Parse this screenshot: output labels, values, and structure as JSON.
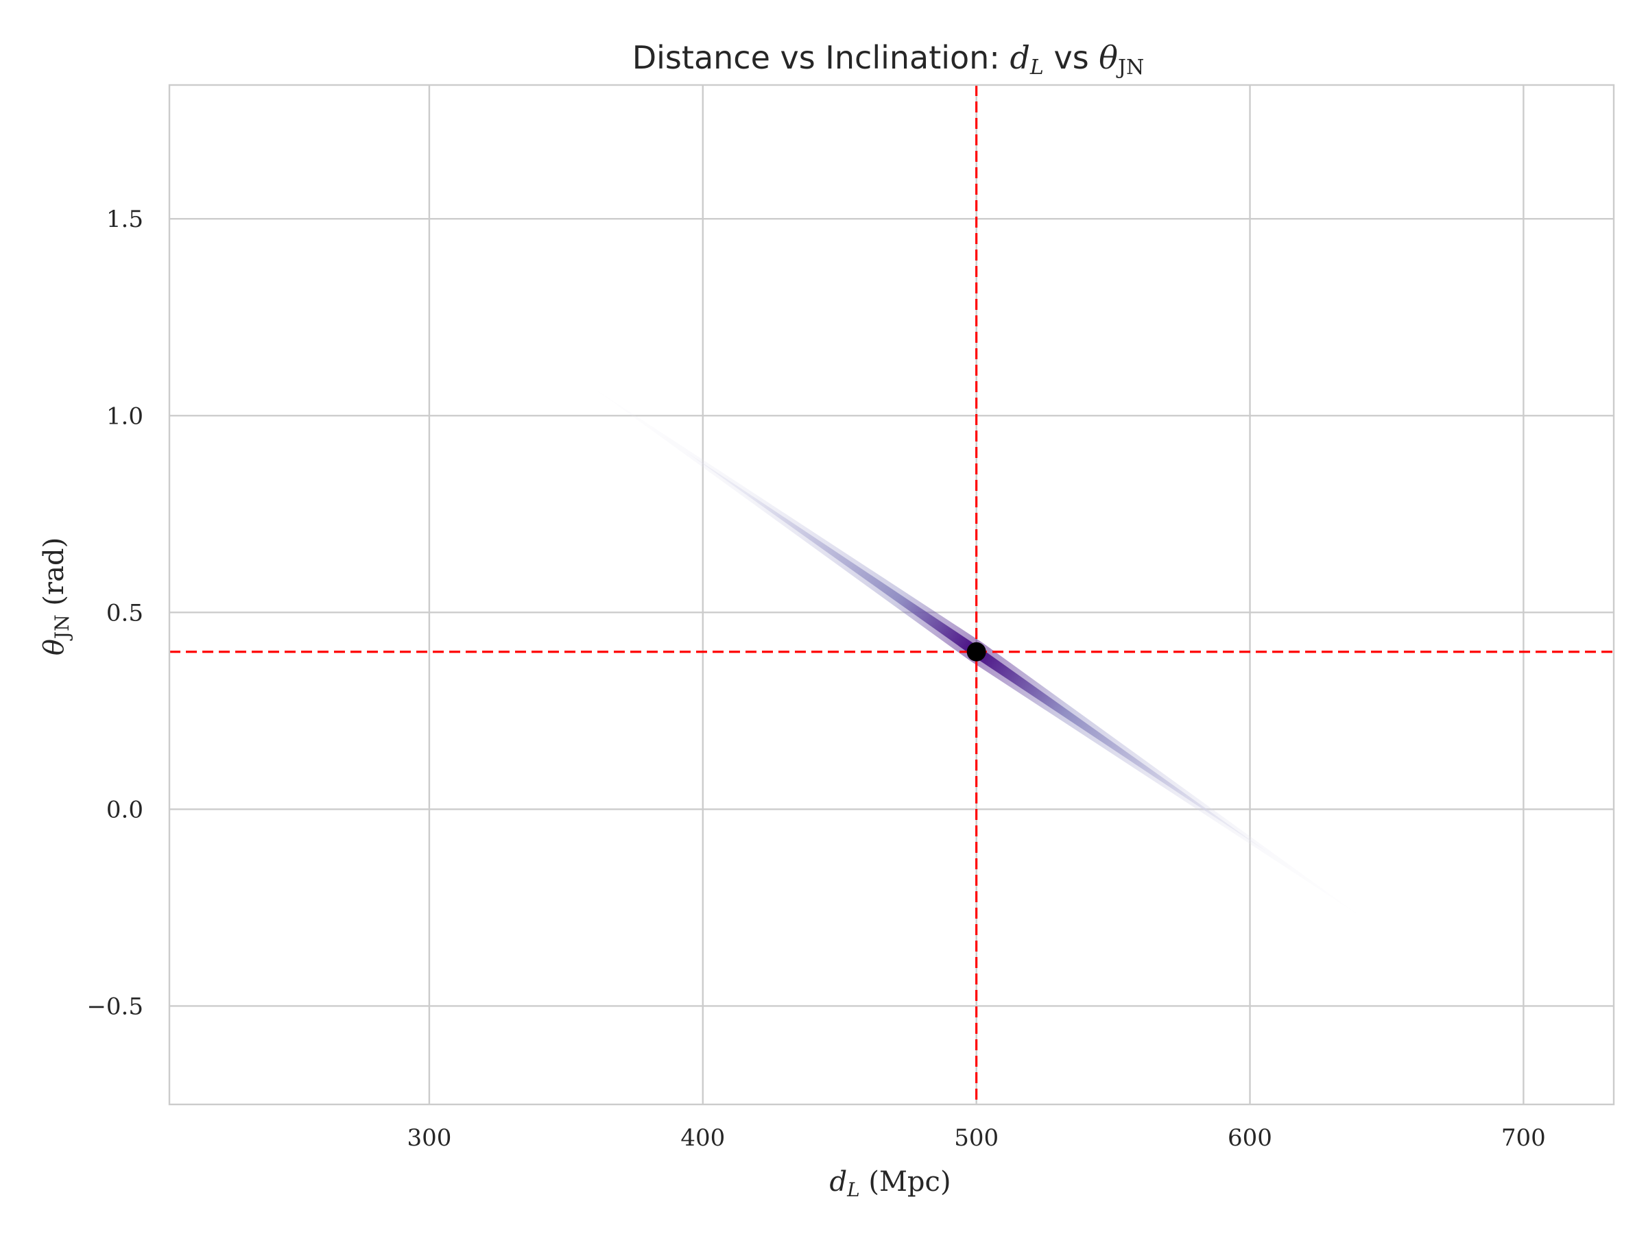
{
  "chart_data": {
    "type": "heatmap",
    "title": {
      "prefix": "Distance vs Inclination: ",
      "x_symbol": "d",
      "x_sub": "L",
      "joiner": " vs ",
      "y_symbol": "θ",
      "y_sub": "JN"
    },
    "xlabel": {
      "symbol": "d",
      "sub": "L",
      "text": " (Mpc)"
    },
    "ylabel": {
      "symbol": "θ",
      "sub": "JN",
      "text": " (rad)"
    },
    "xlim": [
      205,
      733
    ],
    "ylim": [
      -0.75,
      1.84
    ],
    "x_ticks": [
      300,
      400,
      500,
      600,
      700
    ],
    "x_tick_labels": [
      "300",
      "400",
      "500",
      "600",
      "700"
    ],
    "y_ticks": [
      -0.5,
      0.0,
      0.5,
      1.0,
      1.5
    ],
    "y_tick_labels": [
      "−0.5",
      "0.0",
      "0.5",
      "1.0",
      "1.5"
    ],
    "grid": true,
    "legend": "none",
    "density_ridge": {
      "description_points": [
        {
          "x": 360,
          "y": 1.07
        },
        {
          "x": 500,
          "y": 0.4
        },
        {
          "x": 640,
          "y": -0.27
        }
      ],
      "colormap": "Purples",
      "peak_x": 500,
      "peak_y": 0.4
    },
    "injection": {
      "x": 500,
      "y": 0.4
    },
    "colors": {
      "ref_line": "#ff0000",
      "marker": "#000000",
      "density_dark": "#3f007d",
      "density_mid": "#6a51a3",
      "density_light": "#dadaeb"
    }
  }
}
